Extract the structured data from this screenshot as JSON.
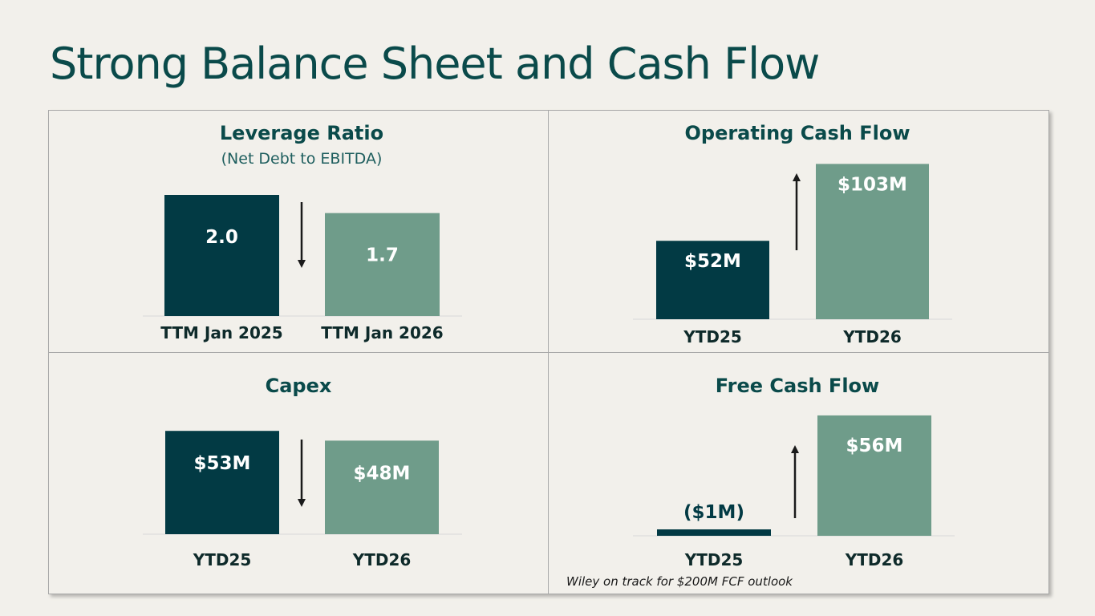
{
  "page": {
    "title": "Strong Balance Sheet and Cash Flow",
    "footnote": "Wiley on track for $200M FCF outlook"
  },
  "colors": {
    "dark": "#023a44",
    "light": "#6f9c8a",
    "title": "#0a4a4a",
    "down_arrow": "#1a1a1a",
    "up_arrow": "#1a1a1a"
  },
  "chart_data": [
    {
      "type": "bar",
      "title": "Leverage Ratio",
      "subtitle": "(Net Debt to EBITDA)",
      "categories": [
        "TTM Jan 2025",
        "TTM Jan 2026"
      ],
      "values": [
        2.0,
        1.7
      ],
      "data_labels": [
        "2.0",
        "1.7"
      ],
      "trend": "down"
    },
    {
      "type": "bar",
      "title": "Operating Cash Flow",
      "categories": [
        "YTD25",
        "YTD26"
      ],
      "values": [
        52,
        103
      ],
      "data_labels": [
        "$52M",
        "$103M"
      ],
      "trend": "up"
    },
    {
      "type": "bar",
      "title": "Capex",
      "categories": [
        "YTD25",
        "YTD26"
      ],
      "values": [
        53,
        48
      ],
      "data_labels": [
        "$53M",
        "$48M"
      ],
      "trend": "down"
    },
    {
      "type": "bar",
      "title": "Free Cash Flow",
      "categories": [
        "YTD25",
        "YTD26"
      ],
      "values": [
        -1,
        56
      ],
      "data_labels": [
        "($1M)",
        "$56M"
      ],
      "trend": "up"
    }
  ]
}
